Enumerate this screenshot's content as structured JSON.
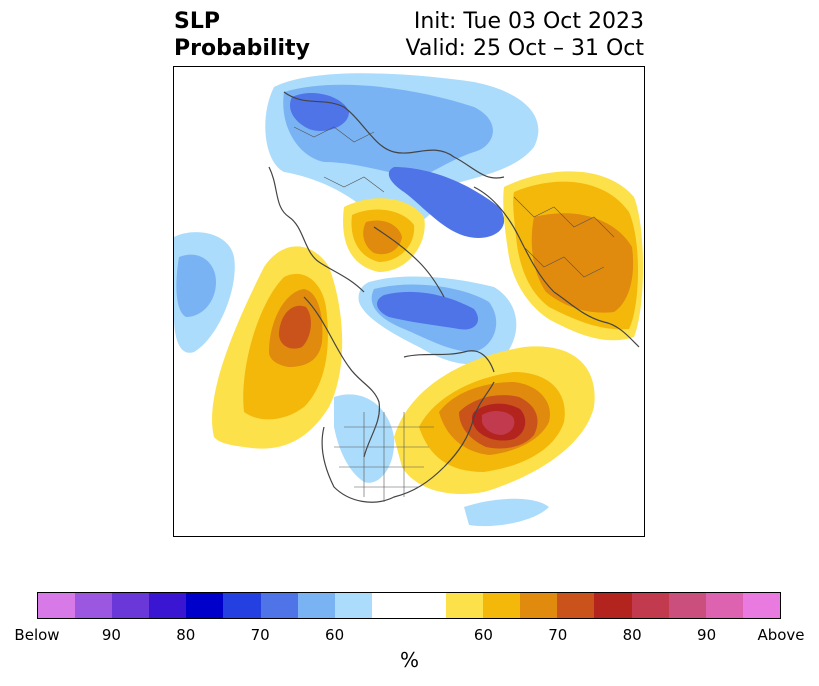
{
  "title": {
    "left": "SLP\nProbability",
    "init": "Init: Tue 03 Oct 2023",
    "valid": "Valid: 25 Oct – 31 Oct"
  },
  "colorbar": {
    "colors": [
      "#d77ae7",
      "#9c57e0",
      "#6a38d9",
      "#3a16d2",
      "#0000cb",
      "#2540e0",
      "#4e74e8",
      "#7ab3f3",
      "#acdcfb",
      "#ffffff",
      "#ffffff",
      "#fde14a",
      "#f4b80a",
      "#e08a0e",
      "#c9531a",
      "#b3241e",
      "#c23a4e",
      "#cb4f7d",
      "#dd63b0",
      "#e87ae0"
    ],
    "tick_labels": [
      "Below",
      "90",
      "80",
      "70",
      "60",
      "60",
      "70",
      "80",
      "90",
      "Above"
    ],
    "unit": "%"
  }
}
